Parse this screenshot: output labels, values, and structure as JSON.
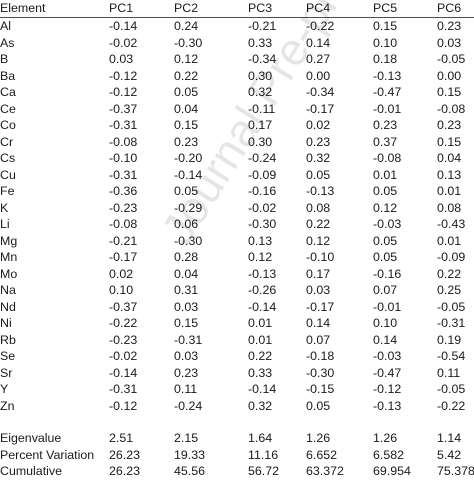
{
  "columns": [
    "Element",
    "PC1",
    "PC2",
    "PC3",
    "PC4",
    "PC5",
    "PC6"
  ],
  "rows": [
    [
      "Al",
      "-0.14",
      "0.24",
      "-0.21",
      "-0.22",
      "0.15",
      "0.23"
    ],
    [
      "As",
      "-0.02",
      "-0.30",
      "0.33",
      "0.14",
      "0.10",
      "0.03"
    ],
    [
      "B",
      "0.03",
      "0.12",
      "-0.34",
      "0.27",
      "0.18",
      "-0.05"
    ],
    [
      "Ba",
      "-0.12",
      "0.22",
      "0.30",
      "0.00",
      "-0.13",
      "0.00"
    ],
    [
      "Ca",
      "-0.12",
      "0.05",
      "0.32",
      "-0.34",
      "-0.47",
      "0.15"
    ],
    [
      "Ce",
      "-0.37",
      "0.04",
      "-0.11",
      "-0.17",
      "-0.01",
      "-0.08"
    ],
    [
      "Co",
      "-0.31",
      "0.15",
      "0.17",
      "0.02",
      "0.23",
      "0.23"
    ],
    [
      "Cr",
      "-0.08",
      "0.23",
      "0.30",
      "0.23",
      "0.37",
      "0.15"
    ],
    [
      "Cs",
      "-0.10",
      "-0.20",
      "-0.24",
      "0.32",
      "-0.08",
      "0.04"
    ],
    [
      "Cu",
      "-0.31",
      "-0.14",
      "-0.09",
      "0.05",
      "0.01",
      "0.13"
    ],
    [
      "Fe",
      "-0.36",
      "0.05",
      "-0.16",
      "-0.13",
      "0.05",
      "0.01"
    ],
    [
      "K",
      "-0.23",
      "-0.29",
      "-0.02",
      "0.08",
      "0.12",
      "0.08"
    ],
    [
      "Li",
      "-0.08",
      "0.06",
      "-0.30",
      "0.22",
      "-0.03",
      "-0.43"
    ],
    [
      "Mg",
      "-0.21",
      "-0.30",
      "0.13",
      "0.12",
      "0.05",
      "0.01"
    ],
    [
      "Mn",
      "-0.17",
      "0.28",
      "0.12",
      "-0.10",
      "0.05",
      "-0.09"
    ],
    [
      "Mo",
      "0.02",
      "0.04",
      "-0.13",
      "0.17",
      "-0.16",
      "0.22"
    ],
    [
      "Na",
      "0.10",
      "0.31",
      "-0.26",
      "0.03",
      "0.07",
      "0.25"
    ],
    [
      "Nd",
      "-0.37",
      "0.03",
      "-0.14",
      "-0.17",
      "-0.01",
      "-0.05"
    ],
    [
      "Ni",
      "-0.22",
      "0.15",
      "0.01",
      "0.14",
      "0.10",
      "-0.31"
    ],
    [
      "Rb",
      "-0.23",
      "-0.31",
      "0.01",
      "0.07",
      "0.14",
      "0.19"
    ],
    [
      "Se",
      "-0.02",
      "0.03",
      "0.22",
      "-0.18",
      "-0.03",
      "-0.54"
    ],
    [
      "Sr",
      "-0.14",
      "0.23",
      "0.33",
      "-0.30",
      "-0.47",
      "0.11"
    ],
    [
      "Y",
      "-0.31",
      "0.11",
      "-0.14",
      "-0.15",
      "-0.12",
      "-0.05"
    ],
    [
      "Zn",
      "-0.12",
      "-0.24",
      "0.32",
      "0.05",
      "-0.13",
      "-0.22"
    ]
  ],
  "summary": [
    [
      "Eigenvalue",
      "2.51",
      "2.15",
      "1.64",
      "1.26",
      "1.26",
      "1.14"
    ],
    [
      "Percent Variation",
      "26.23",
      "19.33",
      "11.16",
      "6.652",
      "6.582",
      "5.42"
    ],
    [
      "Cumulative",
      "26.23",
      "45.56",
      "56.72",
      "63.372",
      "69.954",
      "75.378"
    ]
  ],
  "watermark": "Journal Pre-proof"
}
